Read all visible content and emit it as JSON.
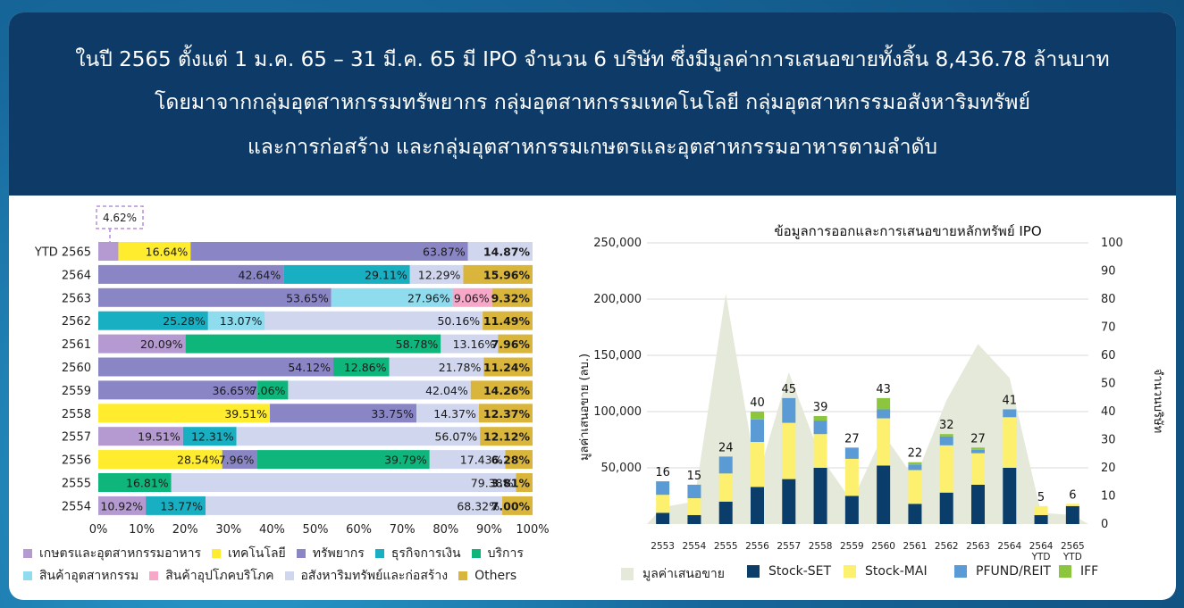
{
  "header": {
    "line1": "ในปี 2565 ตั้งแต่ 1 ม.ค. 65 – 31 มี.ค. 65 มี IPO จำนวน 6 บริษัท ซึ่งมีมูลค่าการเสนอขายทั้งสิ้น 8,436.78 ล้านบาท",
    "line2": "โดยมาจากกลุ่มอุตสาหกรรมทรัพยากร กลุ่มอุตสาหกรรมเทคโนโลยี กลุ่มอุตสาหกรรมอสังหาริมทรัพย์",
    "line3": "และการก่อสร้าง และกลุ่มอุตสาหกรรมเกษตรและอุตสาหกรรมอาหารตามลำดับ"
  },
  "chart_data": [
    {
      "type": "bar",
      "orientation": "horizontal-stacked-100",
      "categories": [
        "YTD 2565",
        "2564",
        "2563",
        "2562",
        "2561",
        "2560",
        "2559",
        "2558",
        "2557",
        "2556",
        "2555",
        "2554"
      ],
      "x_ticks": [
        "0%",
        "10%",
        "20%",
        "30%",
        "40%",
        "50%",
        "60%",
        "70%",
        "80%",
        "90%",
        "100%"
      ],
      "callout": "4.62%",
      "colors": {
        "agro": "#b49ad0",
        "tech": "#ffec2e",
        "resources": "#8a86c6",
        "financials": "#19afc2",
        "services": "#0fb67c",
        "industrials": "#8fdcef",
        "consumer": "#f7a8c8",
        "property": "#d0d6ee",
        "others": "#d9b53b"
      },
      "legend": [
        {
          "key": "agro",
          "label": "เกษตรและอุตสาหกรรมอาหาร"
        },
        {
          "key": "tech",
          "label": "เทคโนโลยี"
        },
        {
          "key": "resources",
          "label": "ทรัพยากร"
        },
        {
          "key": "financials",
          "label": "ธุรกิจการเงิน"
        },
        {
          "key": "services",
          "label": "บริการ"
        },
        {
          "key": "industrials",
          "label": "สินค้าอุตสาหกรรม"
        },
        {
          "key": "consumer",
          "label": "สินค้าอุปโภคบริโภค"
        },
        {
          "key": "property",
          "label": "อสังหาริมทรัพย์และก่อสร้าง"
        },
        {
          "key": "others",
          "label": "Others"
        }
      ],
      "rows": [
        {
          "year": "YTD 2565",
          "segments": [
            {
              "k": "agro",
              "v": 4.62,
              "label": ""
            },
            {
              "k": "tech",
              "v": 16.64,
              "label": "16.64%"
            },
            {
              "k": "resources",
              "v": 63.87,
              "label": "63.87%"
            },
            {
              "k": "property",
              "v": 14.87,
              "label": "14.87%"
            }
          ]
        },
        {
          "year": "2564",
          "segments": [
            {
              "k": "resources",
              "v": 42.64,
              "label": "42.64%"
            },
            {
              "k": "financials",
              "v": 29.11,
              "label": "29.11%"
            },
            {
              "k": "property",
              "v": 12.29,
              "label": "12.29%"
            },
            {
              "k": "others",
              "v": 15.96,
              "label": "15.96%"
            }
          ]
        },
        {
          "year": "2563",
          "segments": [
            {
              "k": "resources",
              "v": 53.65,
              "label": "53.65%"
            },
            {
              "k": "industrials",
              "v": 27.96,
              "label": "27.96%"
            },
            {
              "k": "consumer",
              "v": 9.06,
              "label": "9.06%"
            },
            {
              "k": "others",
              "v": 9.32,
              "label": "9.32%"
            }
          ]
        },
        {
          "year": "2562",
          "segments": [
            {
              "k": "financials",
              "v": 25.28,
              "label": "25.28%"
            },
            {
              "k": "industrials",
              "v": 13.07,
              "label": "13.07%"
            },
            {
              "k": "property",
              "v": 50.16,
              "label": "50.16%"
            },
            {
              "k": "others",
              "v": 11.49,
              "label": "11.49%"
            }
          ]
        },
        {
          "year": "2561",
          "segments": [
            {
              "k": "agro",
              "v": 20.09,
              "label": "20.09%"
            },
            {
              "k": "services",
              "v": 58.78,
              "label": "58.78%"
            },
            {
              "k": "property",
              "v": 13.16,
              "label": "13.16%"
            },
            {
              "k": "others",
              "v": 7.96,
              "label": "7.96%"
            }
          ]
        },
        {
          "year": "2560",
          "segments": [
            {
              "k": "resources",
              "v": 54.12,
              "label": "54.12%"
            },
            {
              "k": "services",
              "v": 12.86,
              "label": "12.86%"
            },
            {
              "k": "property",
              "v": 21.78,
              "label": "21.78%"
            },
            {
              "k": "others",
              "v": 11.24,
              "label": "11.24%"
            }
          ]
        },
        {
          "year": "2559",
          "segments": [
            {
              "k": "resources",
              "v": 36.65,
              "label": "36.65%"
            },
            {
              "k": "services",
              "v": 7.06,
              "label": "7.06%"
            },
            {
              "k": "property",
              "v": 42.04,
              "label": "42.04%"
            },
            {
              "k": "others",
              "v": 14.26,
              "label": "14.26%"
            }
          ]
        },
        {
          "year": "2558",
          "segments": [
            {
              "k": "tech",
              "v": 39.51,
              "label": "39.51%"
            },
            {
              "k": "resources",
              "v": 33.75,
              "label": "33.75%"
            },
            {
              "k": "property",
              "v": 14.37,
              "label": "14.37%"
            },
            {
              "k": "others",
              "v": 12.37,
              "label": "12.37%"
            }
          ]
        },
        {
          "year": "2557",
          "segments": [
            {
              "k": "agro",
              "v": 19.51,
              "label": "19.51%"
            },
            {
              "k": "financials",
              "v": 12.31,
              "label": "12.31%"
            },
            {
              "k": "property",
              "v": 56.07,
              "label": "56.07%"
            },
            {
              "k": "others",
              "v": 12.12,
              "label": "12.12%"
            }
          ]
        },
        {
          "year": "2556",
          "segments": [
            {
              "k": "tech",
              "v": 28.54,
              "label": "28.54%"
            },
            {
              "k": "resources",
              "v": 7.96,
              "label": "7.96%"
            },
            {
              "k": "services",
              "v": 39.79,
              "label": "39.79%"
            },
            {
              "k": "property",
              "v": 17.43,
              "label": "17.43%"
            },
            {
              "k": "others",
              "v": 6.28,
              "label": "6.28%"
            }
          ]
        },
        {
          "year": "2555",
          "segments": [
            {
              "k": "services",
              "v": 16.81,
              "label": "16.81%"
            },
            {
              "k": "property",
              "v": 79.38,
              "label": "79.38%"
            },
            {
              "k": "others",
              "v": 3.81,
              "label": "3.81%"
            }
          ]
        },
        {
          "year": "2554",
          "segments": [
            {
              "k": "agro",
              "v": 10.92,
              "label": "10.92%"
            },
            {
              "k": "financials",
              "v": 13.77,
              "label": "13.77%"
            },
            {
              "k": "property",
              "v": 68.32,
              "label": "68.32%"
            },
            {
              "k": "others",
              "v": 7.0,
              "label": "7.00%"
            }
          ]
        }
      ]
    },
    {
      "type": "bar",
      "subtype": "stacked-bar-with-area",
      "title": "ข้อมูลการออกและการเสนอขายหลักทรัพย์ IPO",
      "ylabel_left": "มูลค่าเสนอขาย (ลบ.)",
      "ylabel_right": "จำนวนบริษัท",
      "ylim_left": [
        0,
        250000
      ],
      "ylim_right": [
        0,
        100
      ],
      "left_ticks": [
        "50,000",
        "100,000",
        "150,000",
        "200,000",
        "250,000"
      ],
      "right_ticks": [
        "0",
        "10",
        "20",
        "30",
        "40",
        "50",
        "60",
        "70",
        "80",
        "90",
        "100"
      ],
      "categories": [
        "2553",
        "2554",
        "2555",
        "2556",
        "2557",
        "2558",
        "2559",
        "2560",
        "2561",
        "2562",
        "2563",
        "2564",
        "2564 YTD",
        "2565 YTD"
      ],
      "series": [
        {
          "name": "Stock-SET",
          "color": "#0b3d6b",
          "values": [
            10000,
            8000,
            20000,
            33000,
            40000,
            50000,
            25000,
            52000,
            18000,
            28000,
            35000,
            50000,
            8000,
            16000
          ]
        },
        {
          "name": "Stock-MAI",
          "color": "#fdf06e",
          "values": [
            16000,
            15000,
            25000,
            40000,
            50000,
            30000,
            33000,
            42000,
            30000,
            42000,
            28000,
            45000,
            8000,
            2000
          ]
        },
        {
          "name": "PFUND/REIT",
          "color": "#5b9bd5",
          "values": [
            12000,
            12000,
            15000,
            20000,
            22000,
            12000,
            10000,
            8000,
            5000,
            8000,
            3000,
            7000,
            0,
            0
          ]
        },
        {
          "name": "IFF",
          "color": "#8cc63f",
          "values": [
            0,
            0,
            0,
            7000,
            0,
            4000,
            0,
            10000,
            2000,
            2000,
            2000,
            0,
            0,
            0
          ]
        }
      ],
      "area": {
        "name": "มูลค่าเสนอขาย",
        "color": "#e4e9d9",
        "values": [
          15000,
          20000,
          205000,
          40000,
          135000,
          60000,
          20000,
          80000,
          40000,
          110000,
          160000,
          130000,
          10000,
          8000
        ]
      },
      "counts": [
        "16",
        "15",
        "24",
        "40",
        "45",
        "39",
        "27",
        "43",
        "22",
        "32",
        "27",
        "41",
        "5",
        "6"
      ]
    }
  ]
}
